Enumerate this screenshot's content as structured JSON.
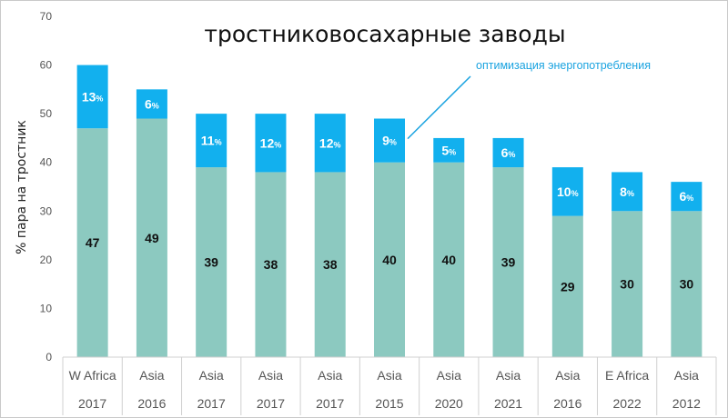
{
  "chart_data": {
    "type": "bar",
    "stacked": true,
    "title": "тростниковосахарные заводы",
    "ylabel": "% пара на тростник",
    "xlabel": "",
    "ylim": [
      0,
      70
    ],
    "yticks": [
      0,
      10,
      20,
      30,
      40,
      50,
      60,
      70
    ],
    "categories": [
      {
        "region": "W Africa",
        "year": "2017"
      },
      {
        "region": "Asia",
        "year": "2016"
      },
      {
        "region": "Asia",
        "year": "2017"
      },
      {
        "region": "Asia",
        "year": "2017"
      },
      {
        "region": "Asia",
        "year": "2017"
      },
      {
        "region": "Asia",
        "year": "2015"
      },
      {
        "region": "Asia",
        "year": "2020"
      },
      {
        "region": "Asia",
        "year": "2021"
      },
      {
        "region": "Asia",
        "year": "2016"
      },
      {
        "region": "E Africa",
        "year": "2022"
      },
      {
        "region": "Asia",
        "year": "2012"
      }
    ],
    "series": [
      {
        "values": [
          47,
          49,
          39,
          38,
          38,
          40,
          40,
          39,
          29,
          30,
          30
        ],
        "color": "#8cc9c0",
        "labels": [
          "47",
          "49",
          "39",
          "38",
          "38",
          "40",
          "40",
          "39",
          "29",
          "30",
          "30"
        ]
      },
      {
        "values": [
          13,
          6,
          11,
          12,
          12,
          9,
          5,
          6,
          10,
          8,
          6
        ],
        "color": "#12b0ee",
        "labels": [
          "13",
          "6",
          "11",
          "12",
          "12",
          "9",
          "5",
          "6",
          "10",
          "8",
          "6"
        ],
        "label_suffix": "%"
      }
    ],
    "annotation": {
      "text": "оптимизация энергопотребления",
      "target_index": 5
    },
    "grid": false,
    "legend": "none"
  }
}
